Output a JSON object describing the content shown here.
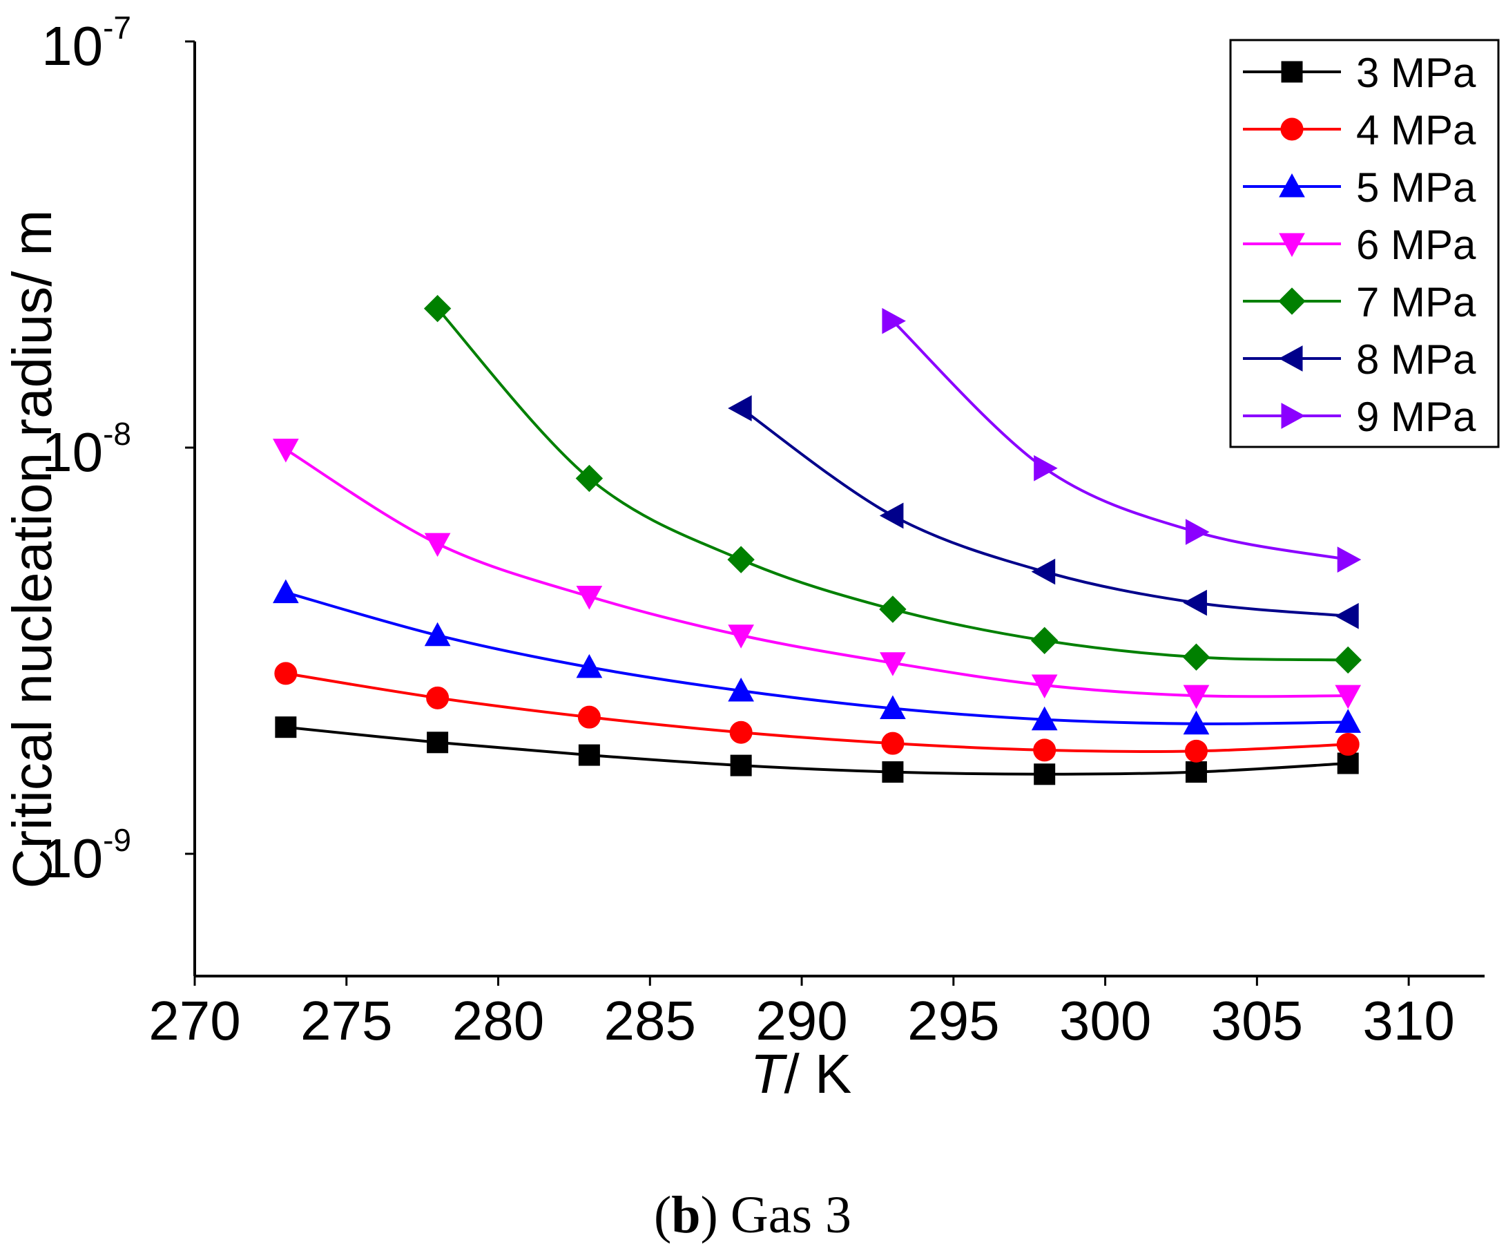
{
  "chart_data": {
    "type": "line",
    "title": "",
    "xlabel_italic": "T",
    "xlabel_rest": "/ K",
    "ylabel": "Critical nucleation radius/ m",
    "xlim": [
      270,
      312.5
    ],
    "ylim": [
      5e-10,
      1e-07
    ],
    "y_scale": "log",
    "x_ticks": [
      "270",
      "275",
      "280",
      "285",
      "290",
      "295",
      "300",
      "305",
      "310"
    ],
    "y_ticks": [
      {
        "base": "10",
        "exp": "-9",
        "value": 1e-09
      },
      {
        "base": "10",
        "exp": "-8",
        "value": 1e-08
      },
      {
        "base": "10",
        "exp": "-7",
        "value": 1e-07
      }
    ],
    "legend_position": "top-right",
    "series": [
      {
        "name": "3 MPa",
        "color": "#000000",
        "marker": "square",
        "x": [
          273,
          278,
          283,
          288,
          293,
          298,
          303,
          308
        ],
        "values": [
          2.05e-09,
          1.88e-09,
          1.75e-09,
          1.65e-09,
          1.59e-09,
          1.57e-09,
          1.59e-09,
          1.67e-09
        ]
      },
      {
        "name": "4 MPa",
        "color": "#ff0000",
        "marker": "circle",
        "x": [
          273,
          278,
          283,
          288,
          293,
          298,
          303,
          308
        ],
        "values": [
          2.78e-09,
          2.42e-09,
          2.17e-09,
          1.99e-09,
          1.87e-09,
          1.8e-09,
          1.79e-09,
          1.86e-09
        ]
      },
      {
        "name": "5 MPa",
        "color": "#0000ff",
        "marker": "triangle-up",
        "x": [
          273,
          278,
          283,
          288,
          293,
          298,
          303,
          308
        ],
        "values": [
          4.4e-09,
          3.45e-09,
          2.88e-09,
          2.52e-09,
          2.28e-09,
          2.14e-09,
          2.09e-09,
          2.11e-09
        ]
      },
      {
        "name": "6 MPa",
        "color": "#ff00ff",
        "marker": "triangle-down",
        "x": [
          273,
          278,
          283,
          288,
          293,
          298,
          303,
          308
        ],
        "values": [
          9.9e-09,
          5.8e-09,
          4.3e-09,
          3.45e-09,
          2.95e-09,
          2.6e-09,
          2.45e-09,
          2.45e-09
        ]
      },
      {
        "name": "7 MPa",
        "color": "#008000",
        "marker": "diamond",
        "x": [
          278,
          283,
          288,
          293,
          298,
          303,
          308
        ],
        "values": [
          2.2e-08,
          8.4e-09,
          5.3e-09,
          4e-09,
          3.35e-09,
          3.05e-09,
          3e-09
        ]
      },
      {
        "name": "8 MPa",
        "color": "#00008b",
        "marker": "triangle-left",
        "x": [
          288,
          293,
          298,
          303,
          308
        ],
        "values": [
          1.25e-08,
          6.8e-09,
          4.95e-09,
          4.15e-09,
          3.85e-09
        ]
      },
      {
        "name": "9 MPa",
        "color": "#8b00ff",
        "marker": "triangle-right",
        "x": [
          293,
          298,
          303,
          308
        ],
        "values": [
          2.05e-08,
          8.9e-09,
          6.2e-09,
          5.3e-09
        ]
      }
    ]
  },
  "caption": {
    "label_bold": "b",
    "open_paren": "(",
    "close_paren": ")",
    "text": "Gas 3"
  }
}
